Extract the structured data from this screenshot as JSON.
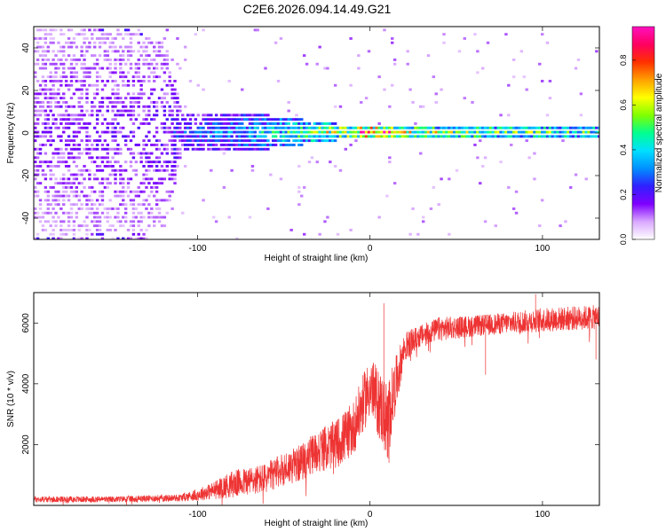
{
  "chart_data": [
    {
      "type": "heatmap",
      "title": "C2E6.2026.094.14.49.G21",
      "xlabel": "Height of straight line (km)",
      "ylabel": "Frequency (Hz)",
      "xlim": [
        -195,
        133
      ],
      "ylim": [
        -50,
        50
      ],
      "x_ticks": [
        -100,
        0,
        100
      ],
      "y_ticks": [
        -40,
        -20,
        0,
        20,
        40
      ],
      "colorbar": {
        "label": "Normalized spectral amplitude",
        "range": [
          0,
          0.95
        ],
        "ticks": [
          "0.0",
          "0.2",
          "0.4",
          "0.6",
          "0.8"
        ],
        "tick_values": [
          0,
          0.2,
          0.4,
          0.6,
          0.8
        ],
        "colormap": [
          "#ffffff",
          "#d9a8ff",
          "#7f00ff",
          "#3020ff",
          "#0090ff",
          "#00e0ff",
          "#00ff90",
          "#80ff00",
          "#ffff00",
          "#ffa000",
          "#ff3000",
          "#ff0060",
          "#ff10c0"
        ]
      },
      "band_profile": [
        {
          "x": -195,
          "width": 50,
          "amp": 0.15,
          "fill": 0.55
        },
        {
          "x": -120,
          "width": 45,
          "amp": 0.18,
          "fill": 0.45
        },
        {
          "x": -110,
          "width": 10,
          "amp": 0.25,
          "fill": 0.9
        },
        {
          "x": -60,
          "width": 8,
          "amp": 0.4,
          "fill": 0.95
        },
        {
          "x": -40,
          "width": 6,
          "amp": 0.5,
          "fill": 0.95
        },
        {
          "x": -20,
          "width": 4,
          "amp": 0.6,
          "fill": 1.0
        },
        {
          "x": 0,
          "width": 3,
          "amp": 0.85,
          "fill": 1.0
        },
        {
          "x": 20,
          "width": 3,
          "amp": 0.6,
          "fill": 1.0
        },
        {
          "x": 133,
          "width": 4,
          "amp": 0.45,
          "fill": 1.0
        }
      ]
    },
    {
      "type": "line",
      "xlabel": "Height of straight line (km)",
      "ylabel": "SNR (10 * v/v)",
      "xlim": [
        -195,
        133
      ],
      "ylim": [
        0,
        7000
      ],
      "x_ticks": [
        -100,
        0,
        100
      ],
      "y_ticks": [
        2000,
        4000,
        6000
      ],
      "color": "#ee3333",
      "series": [
        {
          "name": "SNR",
          "x": [
            -195,
            -150,
            -110,
            -100,
            -90,
            -80,
            -60,
            -50,
            -40,
            -30,
            -20,
            -10,
            0,
            10,
            15,
            20,
            30,
            40,
            60,
            80,
            100,
            133
          ],
          "y": [
            200,
            200,
            250,
            350,
            500,
            700,
            900,
            1200,
            1400,
            1800,
            2000,
            2500,
            3900,
            2800,
            4000,
            5200,
            5600,
            5800,
            5900,
            6000,
            6100,
            6200
          ],
          "noise": [
            100,
            100,
            120,
            200,
            300,
            450,
            500,
            550,
            600,
            700,
            800,
            900,
            1000,
            1300,
            900,
            500,
            350,
            400,
            350,
            350,
            400,
            400
          ]
        }
      ],
      "spikes": [
        {
          "x": 8,
          "y": 6650
        },
        {
          "x": 10,
          "y": 1600
        },
        {
          "x": 11,
          "y": 1400
        },
        {
          "x": 96,
          "y": 6950
        },
        {
          "x": 67,
          "y": 4300
        },
        {
          "x": 131,
          "y": 4800
        }
      ]
    }
  ]
}
